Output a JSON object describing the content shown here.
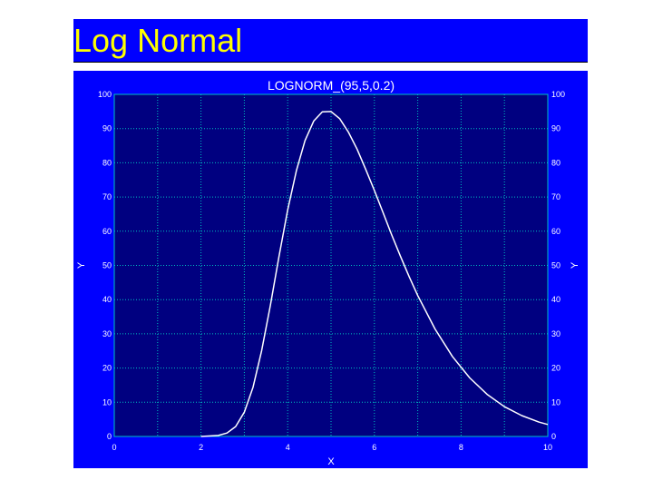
{
  "slide": {
    "title": "Log Normal"
  },
  "colors": {
    "slide_title_bg": "#0000ff",
    "slide_title_text": "#ffff00",
    "chart_frame_bg": "#0000ff",
    "plot_bg": "#000080",
    "grid": "#00c0c0",
    "curve": "#ffffff",
    "label_text": "#ffffff"
  },
  "chart_data": {
    "type": "line",
    "title": "LOGNORM_(95,5,0.2)",
    "xlabel": "X",
    "ylabel": "Y",
    "y2label": "Y",
    "xlim": [
      0,
      10
    ],
    "ylim": [
      0,
      100
    ],
    "x_ticks": [
      0,
      2,
      4,
      6,
      8,
      10
    ],
    "y_ticks": [
      0,
      10,
      20,
      30,
      40,
      50,
      60,
      70,
      80,
      90,
      100
    ],
    "grid": true,
    "secondary_y_axis": true,
    "series": [
      {
        "x": [
          2.0,
          2.4,
          2.6,
          2.8,
          3.0,
          3.2,
          3.4,
          3.6,
          3.8,
          4.0,
          4.2,
          4.4,
          4.6,
          4.8,
          5.0,
          5.2,
          5.4,
          5.6,
          5.8,
          6.0,
          6.2,
          6.4,
          6.6,
          6.8,
          7.0,
          7.4,
          7.8,
          8.2,
          8.6,
          9.0,
          9.4,
          9.8,
          10.0
        ],
        "y": [
          0,
          0.3,
          1.0,
          2.9,
          7.1,
          14.4,
          25.1,
          38.3,
          52.6,
          66.2,
          77.7,
          86.5,
          92.2,
          94.9,
          95.0,
          92.9,
          89.0,
          84.0,
          78.1,
          71.9,
          65.4,
          58.9,
          52.7,
          46.8,
          41.2,
          31.4,
          23.4,
          17.1,
          12.3,
          8.7,
          6.1,
          4.2,
          3.5
        ]
      }
    ]
  }
}
